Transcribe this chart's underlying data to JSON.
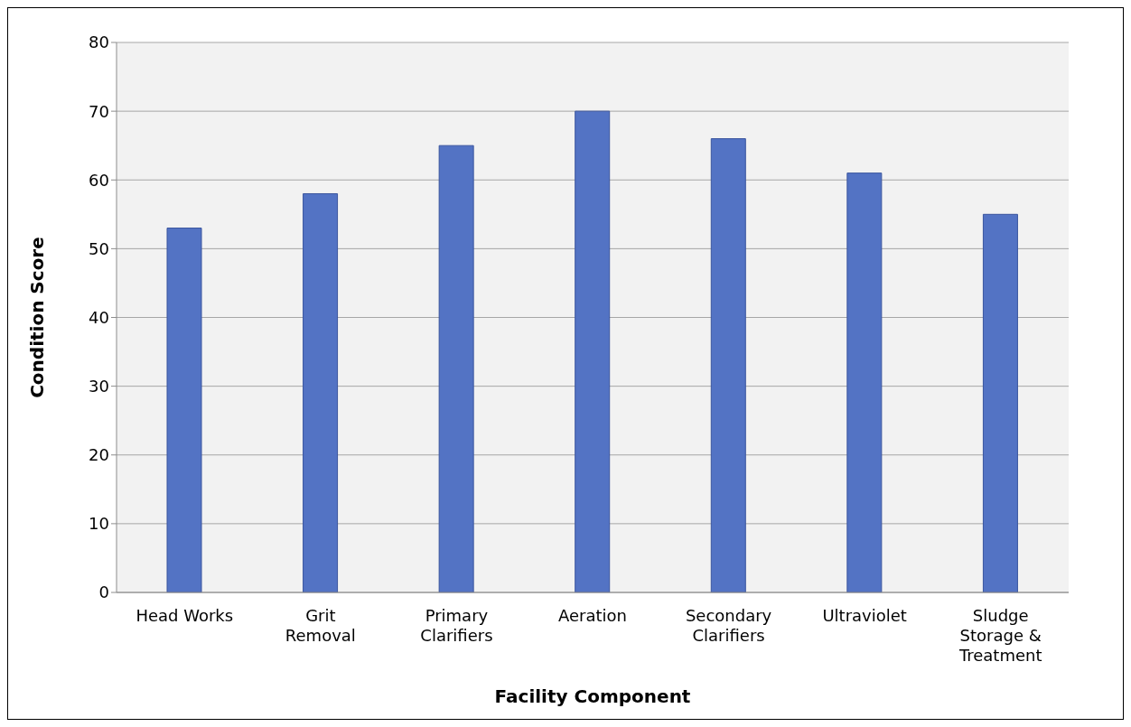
{
  "chart_data": {
    "type": "bar",
    "xlabel": "Facility Component",
    "ylabel": "Condition Score",
    "categories": [
      "Head Works",
      "Grit Removal",
      "Primary Clarifiers",
      "Aeration",
      "Secondary Clarifiers",
      "Ultraviolet",
      "Sludge Storage & Treatment"
    ],
    "values": [
      53,
      58,
      65,
      70,
      66,
      61,
      55
    ],
    "color": "#5373c4",
    "ylim": [
      0,
      80
    ],
    "yticks": [
      0,
      10,
      20,
      30,
      40,
      50,
      60,
      70,
      80
    ],
    "grid": "y"
  }
}
